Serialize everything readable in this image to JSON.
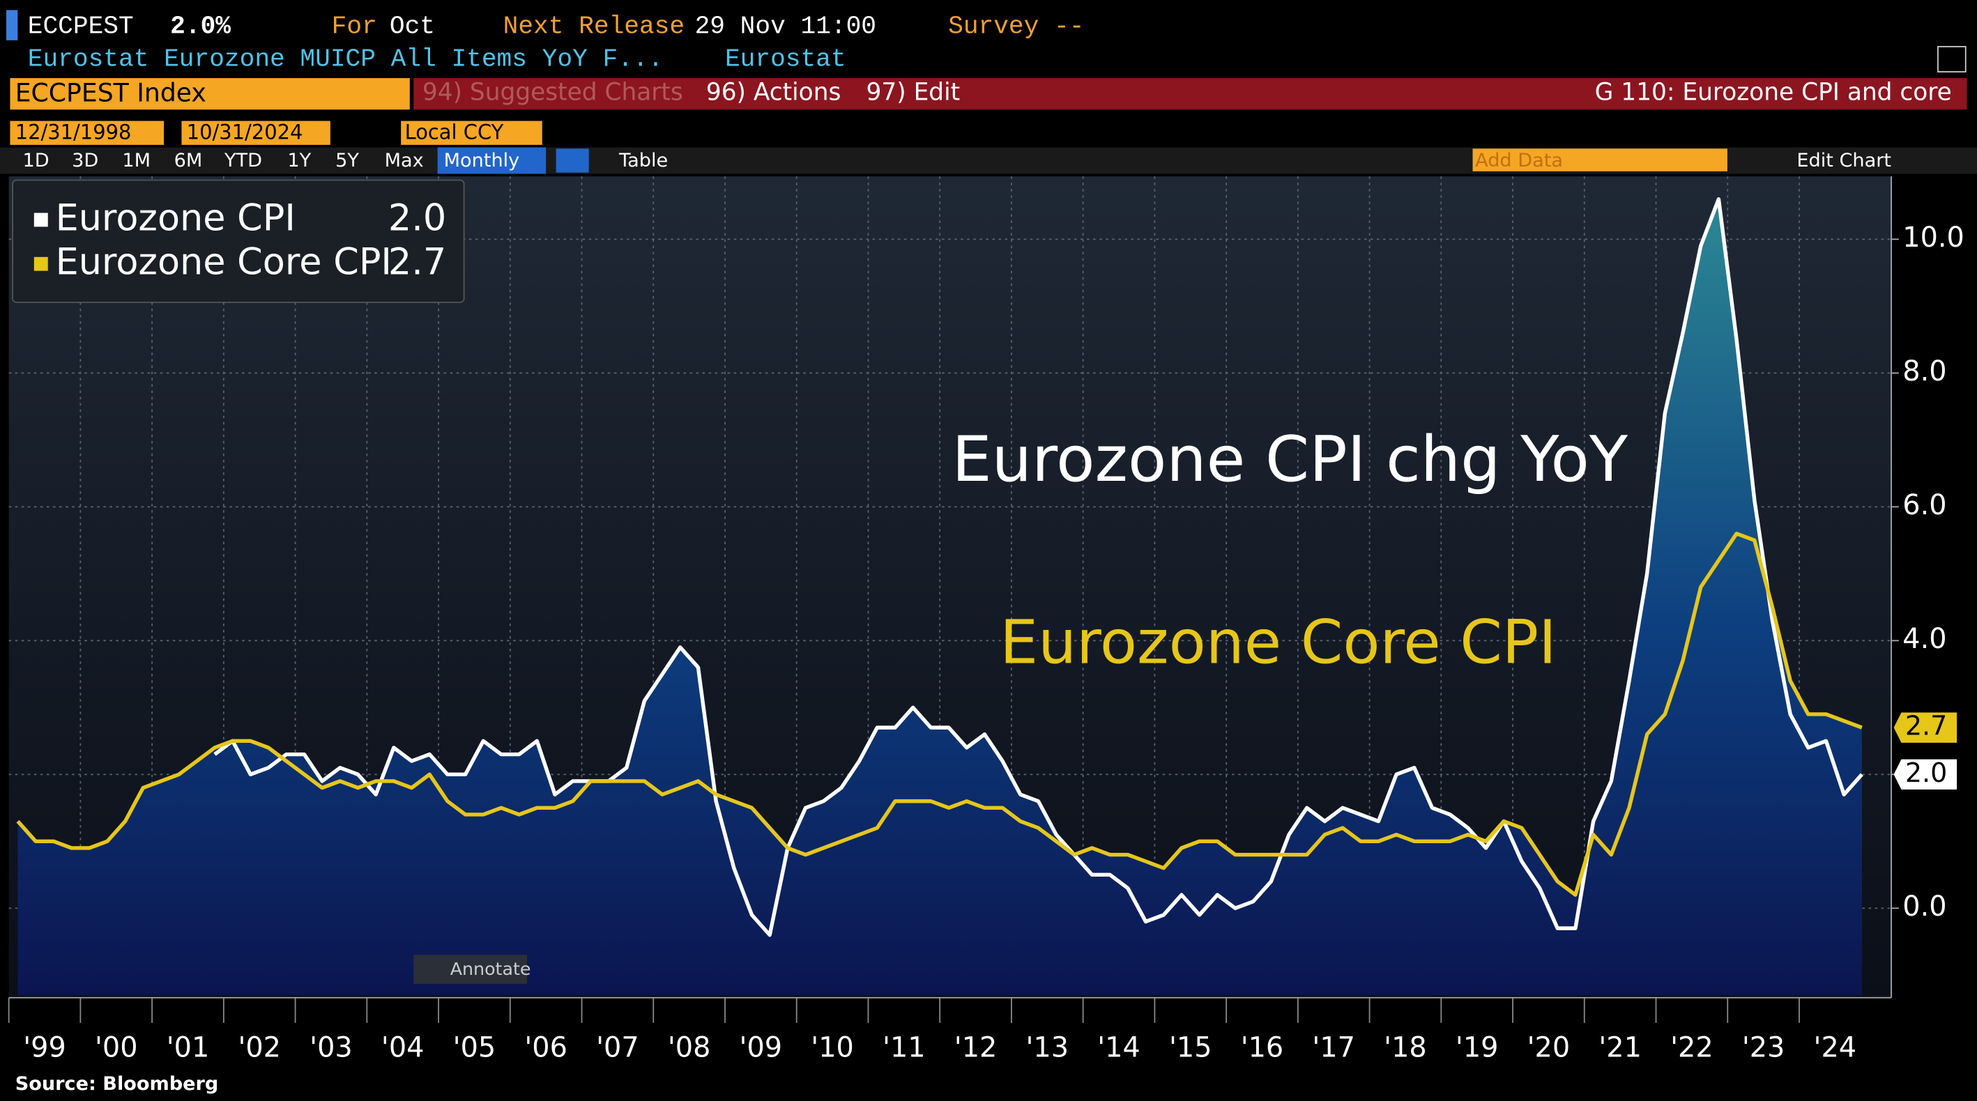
{
  "header": {
    "ticker": "ECCPEST",
    "last": "2.0%",
    "for_label": "For",
    "for_value": "Oct",
    "release_label": "Next Release",
    "release_value": "29 Nov 11:00",
    "survey": "Survey --",
    "description": "Eurostat Eurozone MUICP All Items YoY F...",
    "source_name": "Eurostat"
  },
  "toolbar": {
    "security": "ECCPEST Index",
    "suggested": "94) Suggested Charts",
    "actions": "96) Actions",
    "edit": "97) Edit",
    "chart_name": "G 110: Eurozone CPI and core",
    "start_date": "12/31/1998",
    "end_date": "10/31/2024",
    "currency": "Local CCY",
    "ranges": [
      "1D",
      "3D",
      "1M",
      "6M",
      "YTD",
      "1Y",
      "5Y",
      "Max"
    ],
    "frequency": "Monthly",
    "table": "Table",
    "add_data": "Add Data",
    "edit_chart": "Edit Chart"
  },
  "chart_data": {
    "type": "line",
    "annotations": [
      "Eurozone CPI chg YoY",
      "Eurozone Core CPI"
    ],
    "annotate_button": "Annotate",
    "source": "Source: Bloomberg",
    "categories": [
      "'99",
      null,
      null,
      null,
      "'00",
      null,
      null,
      null,
      "'01",
      null,
      null,
      null,
      "'02",
      null,
      null,
      null,
      "'03",
      null,
      null,
      null,
      "'04",
      null,
      null,
      null,
      "'05",
      null,
      null,
      null,
      "'06",
      null,
      null,
      null,
      "'07",
      null,
      null,
      null,
      "'08",
      null,
      null,
      null,
      "'09",
      null,
      null,
      null,
      "'10",
      null,
      null,
      null,
      "'11",
      null,
      null,
      null,
      "'12",
      null,
      null,
      null,
      "'13",
      null,
      null,
      null,
      "'14",
      null,
      null,
      null,
      "'15",
      null,
      null,
      null,
      "'16",
      null,
      null,
      null,
      "'17",
      null,
      null,
      null,
      "'18",
      null,
      null,
      null,
      "'19",
      null,
      null,
      null,
      "'20",
      null,
      null,
      null,
      "'21",
      null,
      null,
      null,
      "'22",
      null,
      null,
      null,
      "'23",
      null,
      null,
      null,
      "'24",
      null,
      null,
      null
    ],
    "series": [
      {
        "name": "Eurozone CPI",
        "color": "#ffffff",
        "legend_value": "2.0",
        "values": [
          null,
          null,
          null,
          null,
          null,
          null,
          null,
          null,
          null,
          null,
          null,
          2.3,
          2.5,
          2.0,
          2.1,
          2.3,
          2.3,
          1.9,
          2.1,
          2.0,
          1.7,
          2.4,
          2.2,
          2.3,
          2.0,
          2.0,
          2.5,
          2.3,
          2.3,
          2.5,
          1.7,
          1.9,
          1.9,
          1.9,
          2.1,
          3.1,
          3.5,
          3.9,
          3.6,
          1.6,
          0.6,
          -0.1,
          -0.4,
          0.9,
          1.5,
          1.6,
          1.8,
          2.2,
          2.7,
          2.7,
          3.0,
          2.7,
          2.7,
          2.4,
          2.6,
          2.2,
          1.7,
          1.6,
          1.1,
          0.8,
          0.5,
          0.5,
          0.3,
          -0.2,
          -0.1,
          0.2,
          -0.1,
          0.2,
          0.0,
          0.1,
          0.4,
          1.1,
          1.5,
          1.3,
          1.5,
          1.4,
          1.3,
          2.0,
          2.1,
          1.5,
          1.4,
          1.2,
          0.9,
          1.3,
          0.7,
          0.3,
          -0.3,
          -0.3,
          1.3,
          1.9,
          3.4,
          5.0,
          7.4,
          8.6,
          9.9,
          10.6,
          8.5,
          6.1,
          4.3,
          2.9,
          2.4,
          2.5,
          1.7,
          2.0
        ]
      },
      {
        "name": "Eurozone Core CPI",
        "color": "#e6c619",
        "legend_value": "2.7",
        "values": [
          1.3,
          1.0,
          1.0,
          0.9,
          0.9,
          1.0,
          1.3,
          1.8,
          1.9,
          2.0,
          2.2,
          2.4,
          2.5,
          2.5,
          2.4,
          2.2,
          2.0,
          1.8,
          1.9,
          1.8,
          1.9,
          1.9,
          1.8,
          2.0,
          1.6,
          1.4,
          1.4,
          1.5,
          1.4,
          1.5,
          1.5,
          1.6,
          1.9,
          1.9,
          1.9,
          1.9,
          1.7,
          1.8,
          1.9,
          1.7,
          1.6,
          1.5,
          1.2,
          0.9,
          0.8,
          0.9,
          1.0,
          1.1,
          1.2,
          1.6,
          1.6,
          1.6,
          1.5,
          1.6,
          1.5,
          1.5,
          1.3,
          1.2,
          1.0,
          0.8,
          0.9,
          0.8,
          0.8,
          0.7,
          0.6,
          0.9,
          1.0,
          1.0,
          0.8,
          0.8,
          0.8,
          0.8,
          0.8,
          1.1,
          1.2,
          1.0,
          1.0,
          1.1,
          1.0,
          1.0,
          1.0,
          1.1,
          1.0,
          1.3,
          1.2,
          0.8,
          0.4,
          0.2,
          1.1,
          0.8,
          1.5,
          2.6,
          2.9,
          3.7,
          4.8,
          5.2,
          5.6,
          5.5,
          4.5,
          3.4,
          2.9,
          2.9,
          2.8,
          2.7
        ]
      }
    ],
    "ylim": [
      -1.3,
      10.94
    ],
    "yticks": [
      {
        "value": 0,
        "label": "0.0"
      },
      {
        "value": 2,
        "label": "2.0"
      },
      {
        "value": 4,
        "label": "4.0"
      },
      {
        "value": 6,
        "label": "6.0"
      },
      {
        "value": 8,
        "label": "8.0"
      },
      {
        "value": 10,
        "label": "10.0"
      }
    ],
    "grid": true
  }
}
